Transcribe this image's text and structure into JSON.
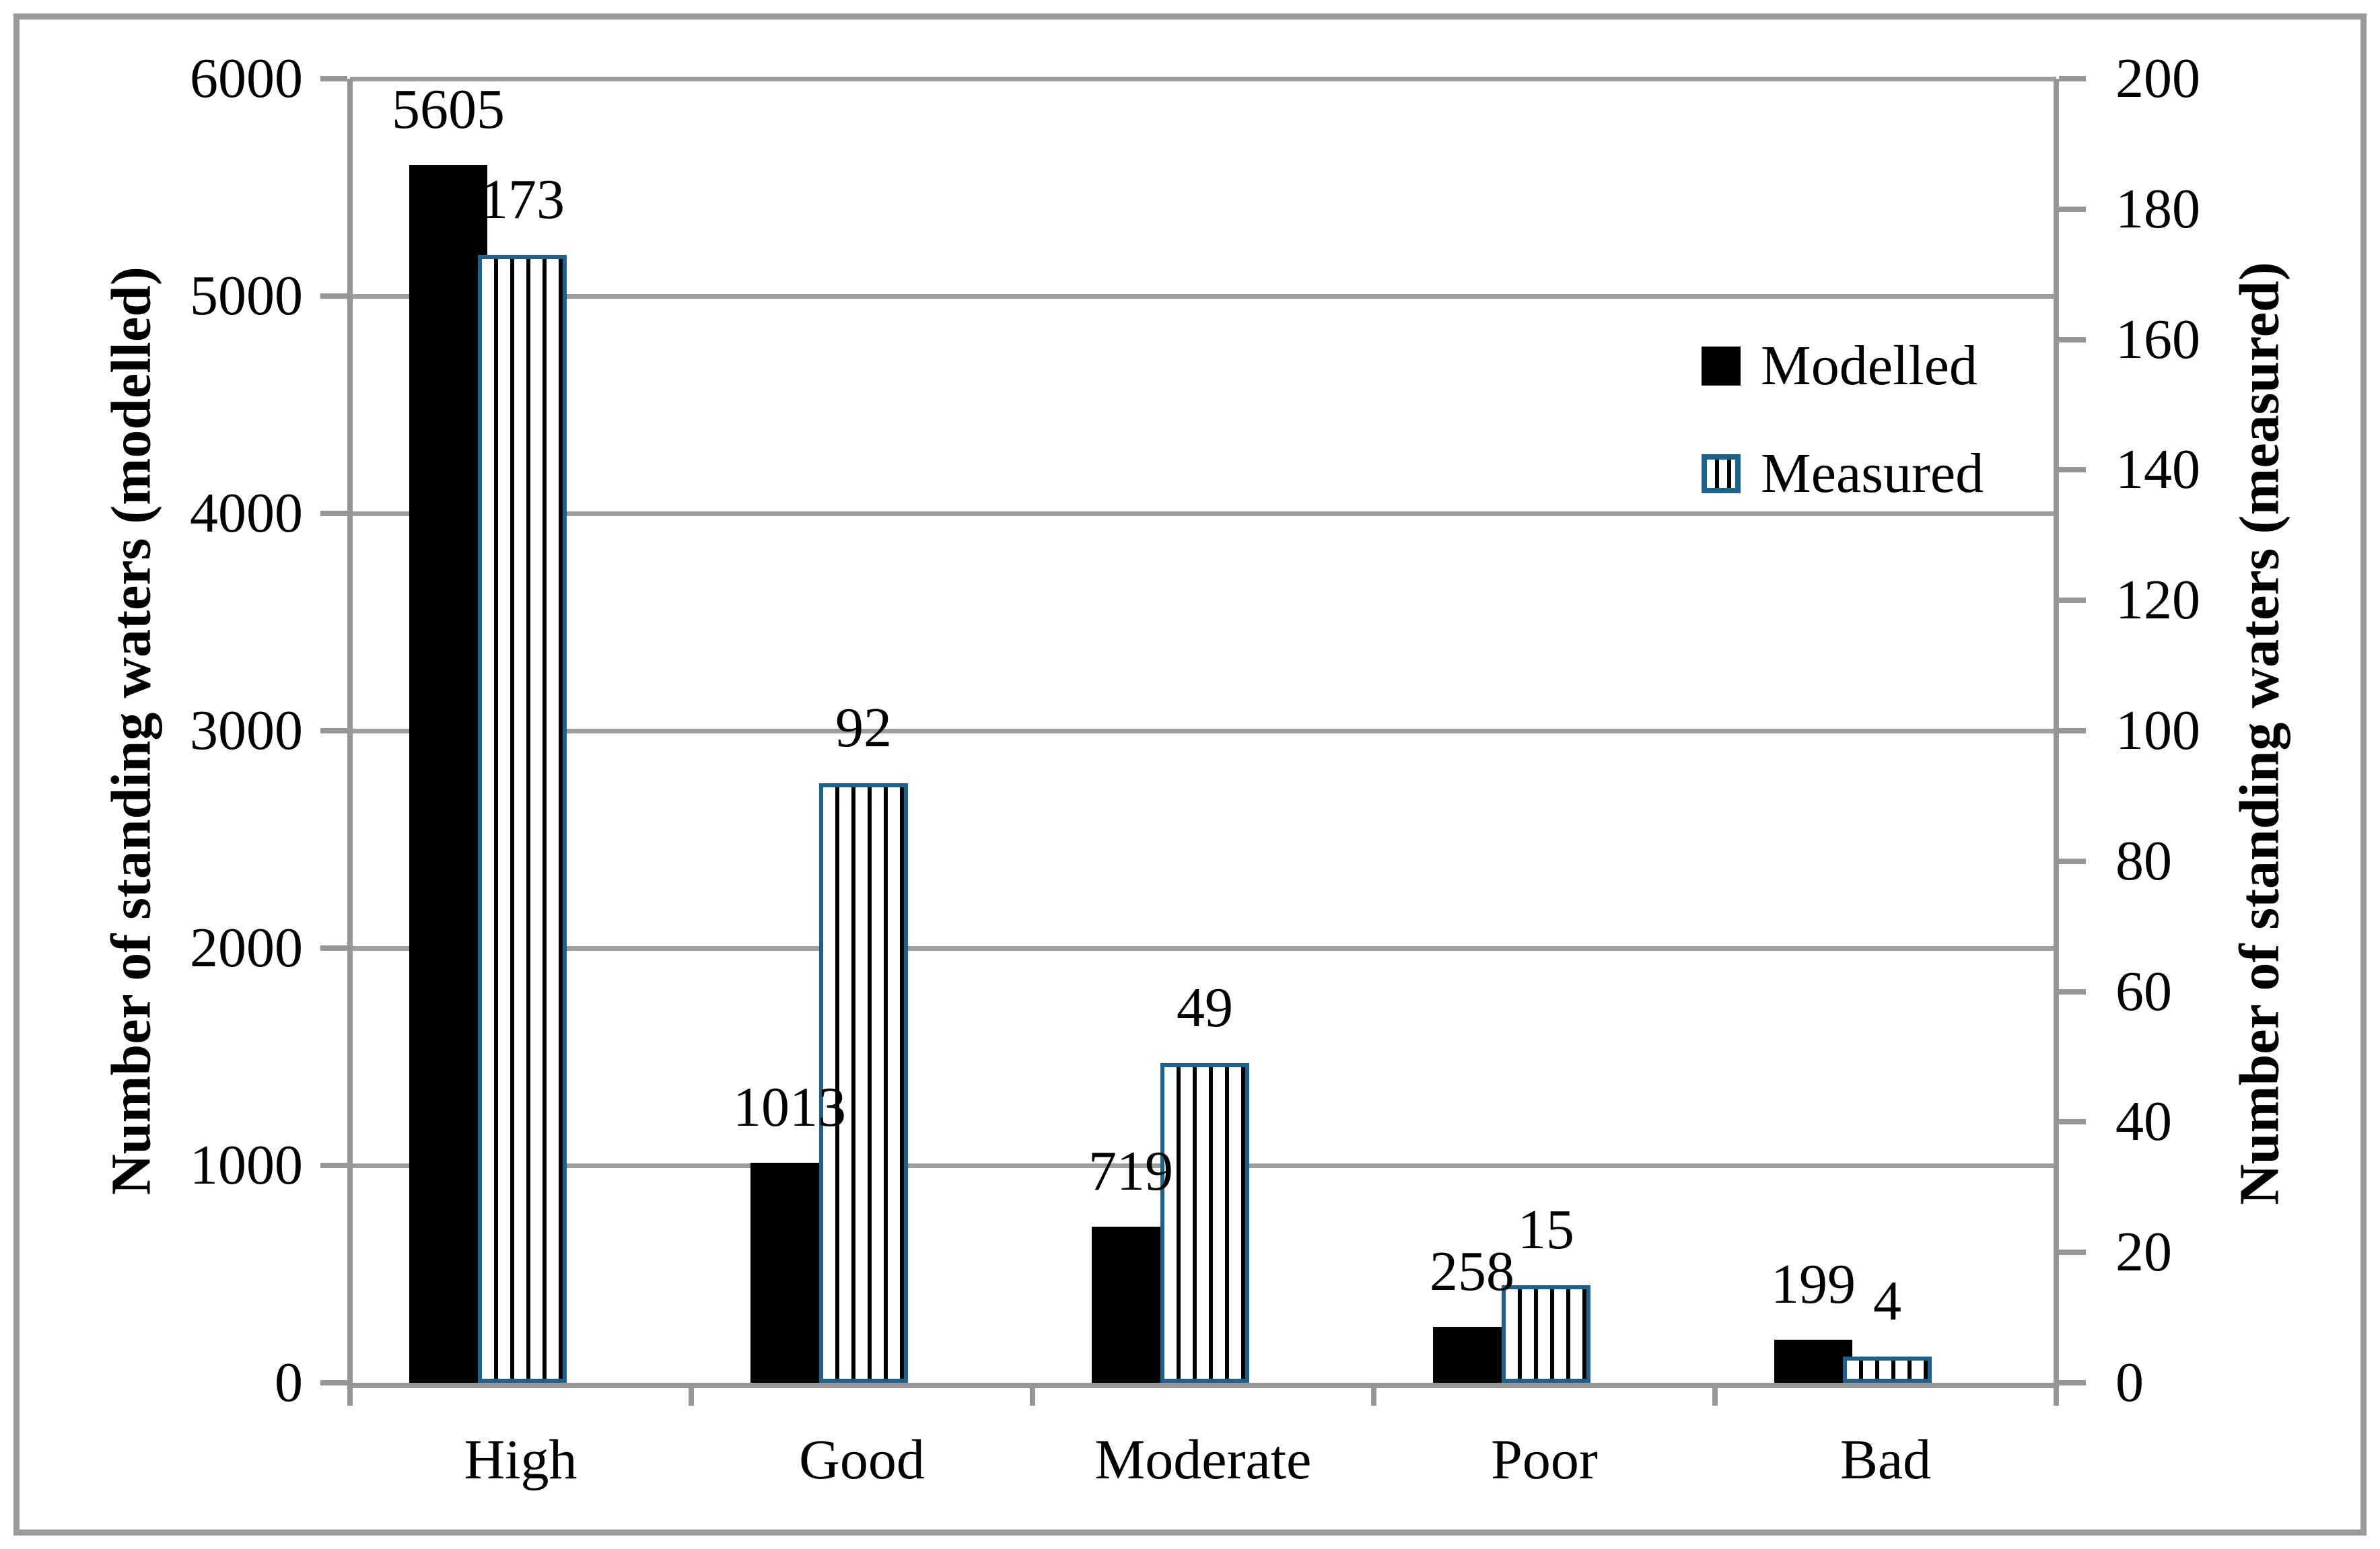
{
  "figure": {
    "type_note": "dual-axis clustered column chart"
  },
  "legend": {
    "items": [
      {
        "label": "Modelled",
        "swatch": "solid-black-square"
      },
      {
        "label": "Measured",
        "swatch": "blue-bordered-vertical-stripes"
      }
    ]
  },
  "colors": {
    "modelled_bar": "#000000",
    "measured_border": "#1C6290",
    "measured_stripe": "#000000",
    "axis_gray": "#969696",
    "gridline_gray": "#9E9E9E",
    "frame_gray": "#9B9B9B",
    "background": "#FFFFFF"
  },
  "chart_data": {
    "type": "bar",
    "categories": [
      "High",
      "Good",
      "Moderate",
      "Poor",
      "Bad"
    ],
    "series": [
      {
        "name": "Modelled",
        "axis": "left",
        "style": "solid-black",
        "values": [
          5605,
          1013,
          719,
          258,
          199
        ],
        "data_labels": [
          "5605",
          "1013",
          "719",
          "258",
          "199"
        ]
      },
      {
        "name": "Measured",
        "axis": "right",
        "style": "vertical-stripes-blue-border",
        "values": [
          173,
          92,
          49,
          15,
          4
        ],
        "data_labels": [
          "173",
          "92",
          "49",
          "15",
          "4"
        ]
      }
    ],
    "left_axis": {
      "title": "Number of standing waters (modelled)",
      "min": 0,
      "max": 6000,
      "step": 1000,
      "ticks": [
        "6000",
        "5000",
        "4000",
        "3000",
        "2000",
        "1000",
        "0"
      ]
    },
    "right_axis": {
      "title": "Number of standing waters (measured)",
      "min": 0,
      "max": 200,
      "step": 20,
      "ticks": [
        "200",
        "180",
        "160",
        "140",
        "120",
        "100",
        "80",
        "60",
        "40",
        "20",
        "0"
      ]
    },
    "grid": true,
    "gridline_values_left": [
      6000,
      5000,
      4000,
      3000,
      2000,
      1000
    ],
    "legend_position": "inside-top-right",
    "data_labels_shown": true
  }
}
